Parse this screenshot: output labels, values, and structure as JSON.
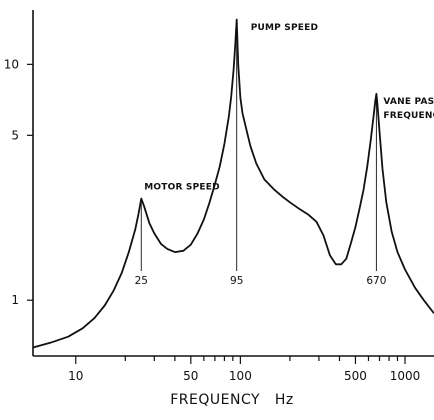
{
  "chart_data": {
    "type": "line",
    "xlabel": "FREQUENCY   Hz",
    "ylabel": "",
    "x_scale": "log",
    "y_scale": "log",
    "xlim": [
      5.5,
      1500
    ],
    "ylim": [
      0.58,
      17
    ],
    "x_ticks": [
      10,
      50,
      100,
      500,
      1000
    ],
    "x_tick_labels": [
      "10",
      "50",
      "100",
      "500",
      "1000"
    ],
    "x_minor_ticks": [
      20,
      30,
      40,
      60,
      70,
      80,
      90,
      200,
      300,
      400,
      600,
      700,
      800,
      900
    ],
    "y_ticks": [
      1,
      5,
      10
    ],
    "y_tick_labels": [
      "1",
      "5",
      "10"
    ],
    "grid": false,
    "series": [
      {
        "x": [
          5.5,
          7,
          9,
          11,
          13,
          15,
          17,
          19,
          21,
          23,
          24,
          25,
          26,
          28,
          30,
          33,
          36,
          40,
          45,
          50,
          55,
          60,
          65,
          70,
          75,
          80,
          85,
          88,
          91,
          93,
          95,
          97,
          100,
          103,
          108,
          115,
          125,
          140,
          160,
          180,
          200,
          230,
          260,
          290,
          320,
          350,
          380,
          410,
          440,
          470,
          500,
          530,
          560,
          590,
          620,
          645,
          660,
          670,
          680,
          700,
          730,
          770,
          830,
          900,
          1000,
          1150,
          1300,
          1500
        ],
        "y": [
          0.63,
          0.66,
          0.7,
          0.76,
          0.84,
          0.95,
          1.1,
          1.3,
          1.6,
          2.0,
          2.3,
          2.7,
          2.5,
          2.12,
          1.92,
          1.73,
          1.65,
          1.6,
          1.62,
          1.72,
          1.92,
          2.2,
          2.6,
          3.1,
          3.7,
          4.6,
          6.0,
          7.3,
          9.5,
          12.0,
          15.5,
          10.0,
          7.2,
          6.2,
          5.4,
          4.5,
          3.8,
          3.25,
          2.95,
          2.75,
          2.6,
          2.43,
          2.3,
          2.15,
          1.88,
          1.55,
          1.42,
          1.42,
          1.5,
          1.75,
          2.05,
          2.45,
          2.95,
          3.7,
          4.8,
          6.1,
          7.0,
          7.5,
          6.8,
          5.2,
          3.6,
          2.6,
          1.95,
          1.6,
          1.35,
          1.13,
          1.0,
          0.88
        ]
      }
    ],
    "annotations": [
      {
        "text": "MOTOR SPEED",
        "value": "25",
        "x": 25,
        "y": 2.7
      },
      {
        "text": "PUMP SPEED",
        "value": "95",
        "x": 95,
        "y": 15.5
      },
      {
        "text": "VANE PASS FREQUENCY",
        "value": "670",
        "x": 670,
        "y": 7.5
      }
    ]
  }
}
